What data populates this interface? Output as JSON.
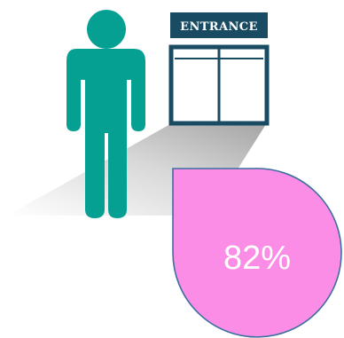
{
  "sign": {
    "label": "ENTRANCE"
  },
  "stat": {
    "percent_text": "82%"
  },
  "icons": {
    "person": "person-icon",
    "door": "double-door-icon"
  },
  "colors": {
    "person": "#06a092",
    "door_frame": "#194c63",
    "sign_text": "#ffffff",
    "callout_fill": "#fb8de6",
    "callout_stroke": "#3c6fa0",
    "callout_text": "#ffffff",
    "shadow": "#a9a9a9"
  }
}
